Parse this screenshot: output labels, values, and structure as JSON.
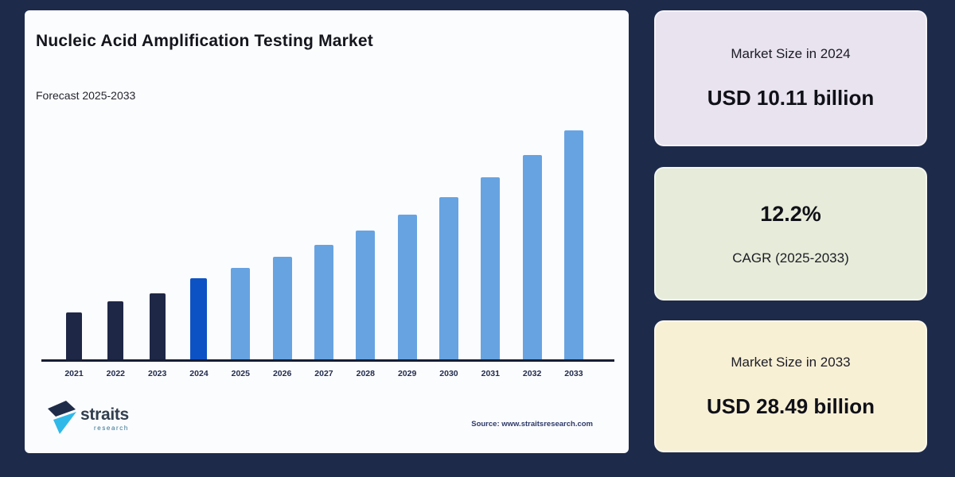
{
  "page": {
    "background": "#1d2a4a",
    "panel_background": "#fbfcfe"
  },
  "chart_data": {
    "type": "bar",
    "title": "Nucleic Acid Amplification Testing Market",
    "subtitle": "Forecast 2025-2033",
    "unit": "USD billion",
    "categories": [
      "2021",
      "2022",
      "2023",
      "2024",
      "2025",
      "2026",
      "2027",
      "2028",
      "2029",
      "2030",
      "2031",
      "2032",
      "2033"
    ],
    "values": [
      5.8,
      7.2,
      8.2,
      10.11,
      11.34,
      12.73,
      14.28,
      16.02,
      17.97,
      20.17,
      22.63,
      25.39,
      28.49
    ],
    "labeled_values": {
      "2024": "USD 10.11 billion",
      "2033": "USD 28.49 billion"
    },
    "cagr": "12.2%",
    "bar_roles": [
      "historical",
      "historical",
      "historical",
      "base_year",
      "forecast",
      "forecast",
      "forecast",
      "forecast",
      "forecast",
      "forecast",
      "forecast",
      "forecast",
      "forecast"
    ],
    "colors": {
      "historical": "#1f2746",
      "base_year": "#0d52c4",
      "forecast": "#67a3e1"
    },
    "xlabel": "",
    "ylabel": "",
    "ylim": [
      0,
      28.49
    ],
    "grid": false,
    "legend": false,
    "estimated_note": "values for years without on-image labels are estimated from bar heights and the 12.2% CAGR"
  },
  "footer": {
    "source": "Source: www.straitsresearch.com",
    "logo": {
      "wordmark": "straits",
      "sub_wordmark": "research",
      "arrow_dark": "#1f2c49",
      "arrow_cyan": "#2fb9e9"
    }
  },
  "cards": [
    {
      "label": "Market Size in 2024",
      "value": "USD 10.11 billion",
      "background": "#e8e3ee"
    },
    {
      "value": "12.2%",
      "label": "CAGR (2025-2033)",
      "background": "#e6ecd9"
    },
    {
      "label": "Market Size in 2033",
      "value": "USD 28.49 billion",
      "background": "#f8f0d5"
    }
  ]
}
